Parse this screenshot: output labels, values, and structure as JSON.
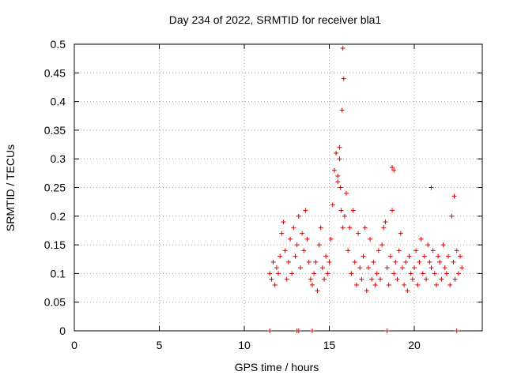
{
  "chart_data": {
    "type": "scatter",
    "title": "Day 234 of 2022, SRMTID for receiver bla1",
    "xlabel": "GPS time / hours",
    "ylabel": "SRMTID / TECUs",
    "xlim": [
      0,
      24
    ],
    "ylim": [
      0,
      0.5
    ],
    "grid": true,
    "marker": "+",
    "color": "#dd0000",
    "x_ticks": [
      0,
      5,
      10,
      15,
      20
    ],
    "x_tick_labels": [
      "0",
      "5",
      "10",
      "15",
      "20"
    ],
    "y_ticks": [
      0,
      0.05,
      0.1,
      0.15,
      0.2,
      0.25,
      0.3,
      0.35,
      0.4,
      0.45,
      0.5
    ],
    "y_tick_labels": [
      "0",
      "0.05",
      "0.1",
      "0.15",
      "0.2",
      "0.25",
      "0.3",
      "0.35",
      "0.4",
      "0.45",
      "0.5"
    ],
    "series": [
      {
        "name": "SRMTID",
        "x": [
          11.5,
          11.6,
          11.7,
          11.8,
          11.9,
          12.0,
          12.1,
          12.2,
          12.3,
          12.4,
          12.5,
          12.6,
          12.7,
          12.8,
          12.9,
          13.0,
          13.1,
          13.2,
          13.3,
          13.4,
          13.5,
          13.6,
          13.7,
          13.8,
          13.9,
          14.0,
          14.1,
          14.2,
          14.3,
          14.4,
          14.5,
          14.6,
          14.7,
          14.8,
          14.9,
          15.0,
          15.1,
          15.2,
          15.3,
          15.4,
          15.5,
          15.6,
          15.7,
          15.8,
          15.9,
          16.0,
          16.1,
          16.2,
          16.3,
          16.4,
          16.5,
          16.6,
          16.7,
          16.8,
          16.9,
          17.0,
          17.1,
          17.2,
          17.3,
          17.4,
          17.5,
          17.6,
          17.7,
          17.8,
          17.9,
          18.0,
          18.1,
          18.2,
          18.3,
          18.4,
          18.5,
          18.6,
          18.7,
          18.8,
          18.9,
          19.0,
          19.1,
          19.2,
          19.3,
          19.4,
          19.5,
          19.6,
          19.7,
          19.8,
          19.9,
          20.0,
          20.1,
          20.2,
          20.3,
          20.4,
          20.5,
          20.6,
          20.7,
          20.8,
          20.9,
          21.0,
          21.1,
          21.2,
          21.3,
          21.4,
          21.5,
          21.6,
          21.7,
          21.8,
          21.9,
          22.0,
          22.1,
          22.2,
          22.3,
          22.4,
          22.5,
          22.6,
          22.7,
          22.8,
          15.8,
          15.85,
          15.75,
          15.6,
          15.5,
          15.65,
          18.7,
          18.8,
          21.0,
          22.35,
          11.5,
          13.1,
          13.2,
          14.0,
          18.4,
          22.5
        ],
        "y": [
          0.1,
          0.09,
          0.12,
          0.08,
          0.11,
          0.1,
          0.13,
          0.17,
          0.19,
          0.14,
          0.09,
          0.12,
          0.16,
          0.1,
          0.18,
          0.13,
          0.15,
          0.2,
          0.11,
          0.17,
          0.14,
          0.21,
          0.16,
          0.12,
          0.09,
          0.08,
          0.1,
          0.12,
          0.07,
          0.15,
          0.18,
          0.11,
          0.09,
          0.13,
          0.1,
          0.12,
          0.16,
          0.22,
          0.28,
          0.31,
          0.26,
          0.32,
          0.21,
          0.18,
          0.2,
          0.24,
          0.14,
          0.18,
          0.1,
          0.21,
          0.12,
          0.08,
          0.17,
          0.11,
          0.09,
          0.13,
          0.18,
          0.07,
          0.11,
          0.16,
          0.09,
          0.12,
          0.08,
          0.1,
          0.14,
          0.09,
          0.15,
          0.18,
          0.19,
          0.11,
          0.08,
          0.13,
          0.21,
          0.1,
          0.12,
          0.09,
          0.14,
          0.17,
          0.11,
          0.08,
          0.12,
          0.07,
          0.13,
          0.1,
          0.09,
          0.11,
          0.14,
          0.08,
          0.12,
          0.16,
          0.1,
          0.13,
          0.09,
          0.15,
          0.12,
          0.11,
          0.14,
          0.1,
          0.08,
          0.13,
          0.12,
          0.09,
          0.15,
          0.11,
          0.1,
          0.13,
          0.08,
          0.2,
          0.12,
          0.09,
          0.14,
          0.1,
          0.13,
          0.11,
          0.493,
          0.44,
          0.385,
          0.3,
          0.27,
          0.25,
          0.285,
          0.28,
          0.25,
          0.235,
          0.0,
          0.0,
          0.0,
          0.0,
          0.0,
          0.0
        ]
      }
    ]
  }
}
